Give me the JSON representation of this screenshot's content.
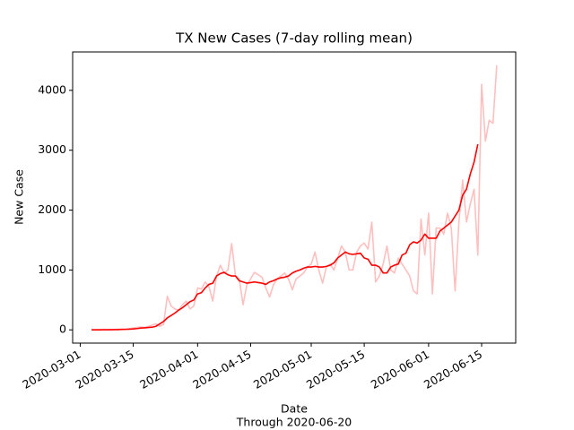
{
  "chart_data": {
    "type": "line",
    "title": "TX New Cases (7-day rolling mean)",
    "x_label": "Date",
    "x_sublabel": "Through 2020-06-20",
    "y_label": "New Case",
    "x": [
      "2020-03-04",
      "2020-03-05",
      "2020-03-06",
      "2020-03-07",
      "2020-03-08",
      "2020-03-09",
      "2020-03-10",
      "2020-03-11",
      "2020-03-12",
      "2020-03-13",
      "2020-03-14",
      "2020-03-15",
      "2020-03-16",
      "2020-03-17",
      "2020-03-18",
      "2020-03-19",
      "2020-03-20",
      "2020-03-21",
      "2020-03-22",
      "2020-03-23",
      "2020-03-24",
      "2020-03-25",
      "2020-03-26",
      "2020-03-27",
      "2020-03-28",
      "2020-03-29",
      "2020-03-30",
      "2020-03-31",
      "2020-04-01",
      "2020-04-02",
      "2020-04-03",
      "2020-04-04",
      "2020-04-05",
      "2020-04-06",
      "2020-04-07",
      "2020-04-08",
      "2020-04-09",
      "2020-04-10",
      "2020-04-11",
      "2020-04-12",
      "2020-04-13",
      "2020-04-14",
      "2020-04-15",
      "2020-04-16",
      "2020-04-17",
      "2020-04-18",
      "2020-04-19",
      "2020-04-20",
      "2020-04-21",
      "2020-04-22",
      "2020-04-23",
      "2020-04-24",
      "2020-04-25",
      "2020-04-26",
      "2020-04-27",
      "2020-04-28",
      "2020-04-29",
      "2020-04-30",
      "2020-05-01",
      "2020-05-02",
      "2020-05-03",
      "2020-05-04",
      "2020-05-05",
      "2020-05-06",
      "2020-05-07",
      "2020-05-08",
      "2020-05-09",
      "2020-05-10",
      "2020-05-11",
      "2020-05-12",
      "2020-05-13",
      "2020-05-14",
      "2020-05-15",
      "2020-05-16",
      "2020-05-17",
      "2020-05-18",
      "2020-05-19",
      "2020-05-20",
      "2020-05-21",
      "2020-05-22",
      "2020-05-23",
      "2020-05-24",
      "2020-05-25",
      "2020-05-26",
      "2020-05-27",
      "2020-05-28",
      "2020-05-29",
      "2020-05-30",
      "2020-05-31",
      "2020-06-01",
      "2020-06-02",
      "2020-06-03",
      "2020-06-04",
      "2020-06-05",
      "2020-06-06",
      "2020-06-07",
      "2020-06-08",
      "2020-06-09",
      "2020-06-10",
      "2020-06-11",
      "2020-06-12",
      "2020-06-13",
      "2020-06-14",
      "2020-06-15",
      "2020-06-16",
      "2020-06-17",
      "2020-06-18",
      "2020-06-19"
    ],
    "series": [
      {
        "color": "#ffbfbf",
        "values": [
          0,
          0,
          2,
          3,
          2,
          5,
          5,
          10,
          15,
          10,
          20,
          30,
          40,
          50,
          40,
          60,
          80,
          100,
          60,
          90,
          560,
          400,
          350,
          330,
          420,
          480,
          350,
          400,
          700,
          680,
          800,
          720,
          480,
          900,
          1080,
          950,
          1000,
          1440,
          900,
          850,
          420,
          750,
          850,
          960,
          920,
          880,
          700,
          550,
          750,
          850,
          900,
          950,
          850,
          670,
          850,
          900,
          950,
          1050,
          1100,
          1300,
          1000,
          780,
          1050,
          1100,
          1000,
          1200,
          1400,
          1300,
          1000,
          1000,
          1300,
          1400,
          1450,
          1350,
          1800,
          800,
          900,
          1100,
          1400,
          1000,
          950,
          1200,
          1100,
          1000,
          900,
          650,
          600,
          1850,
          1250,
          1950,
          600,
          1700,
          1700,
          1600,
          1950,
          1700,
          650,
          1800,
          2500,
          1800,
          2100,
          2350,
          1250,
          4100,
          3150,
          3500,
          3450,
          4420
        ]
      },
      {
        "color": "#ff0000",
        "values": [
          0,
          0,
          1,
          2,
          2,
          3,
          4,
          5,
          7,
          9,
          12,
          16,
          22,
          30,
          35,
          40,
          45,
          60,
          100,
          140,
          200,
          240,
          280,
          330,
          370,
          420,
          470,
          500,
          600,
          620,
          700,
          760,
          780,
          900,
          940,
          960,
          920,
          900,
          900,
          820,
          800,
          780,
          790,
          800,
          790,
          780,
          760,
          800,
          820,
          850,
          870,
          880,
          900,
          950,
          980,
          1000,
          1030,
          1050,
          1050,
          1060,
          1050,
          1050,
          1060,
          1080,
          1120,
          1200,
          1250,
          1300,
          1270,
          1260,
          1270,
          1280,
          1200,
          1180,
          1080,
          1080,
          1050,
          950,
          950,
          1050,
          1080,
          1100,
          1250,
          1280,
          1420,
          1470,
          1450,
          1500,
          1600,
          1530,
          1530,
          1530,
          1650,
          1700,
          1750,
          1800,
          1900,
          2000,
          2250,
          2350,
          2600,
          2800,
          3100,
          null,
          null,
          null,
          null,
          null
        ]
      }
    ],
    "xlim": [
      "2020-02-28",
      "2020-06-24"
    ],
    "xticks": [
      "2020-03-01",
      "2020-03-15",
      "2020-04-01",
      "2020-04-15",
      "2020-05-01",
      "2020-05-15",
      "2020-06-01",
      "2020-06-15"
    ],
    "ylim": [
      -221,
      4641
    ],
    "yticks": [
      0,
      1000,
      2000,
      3000,
      4000
    ]
  }
}
